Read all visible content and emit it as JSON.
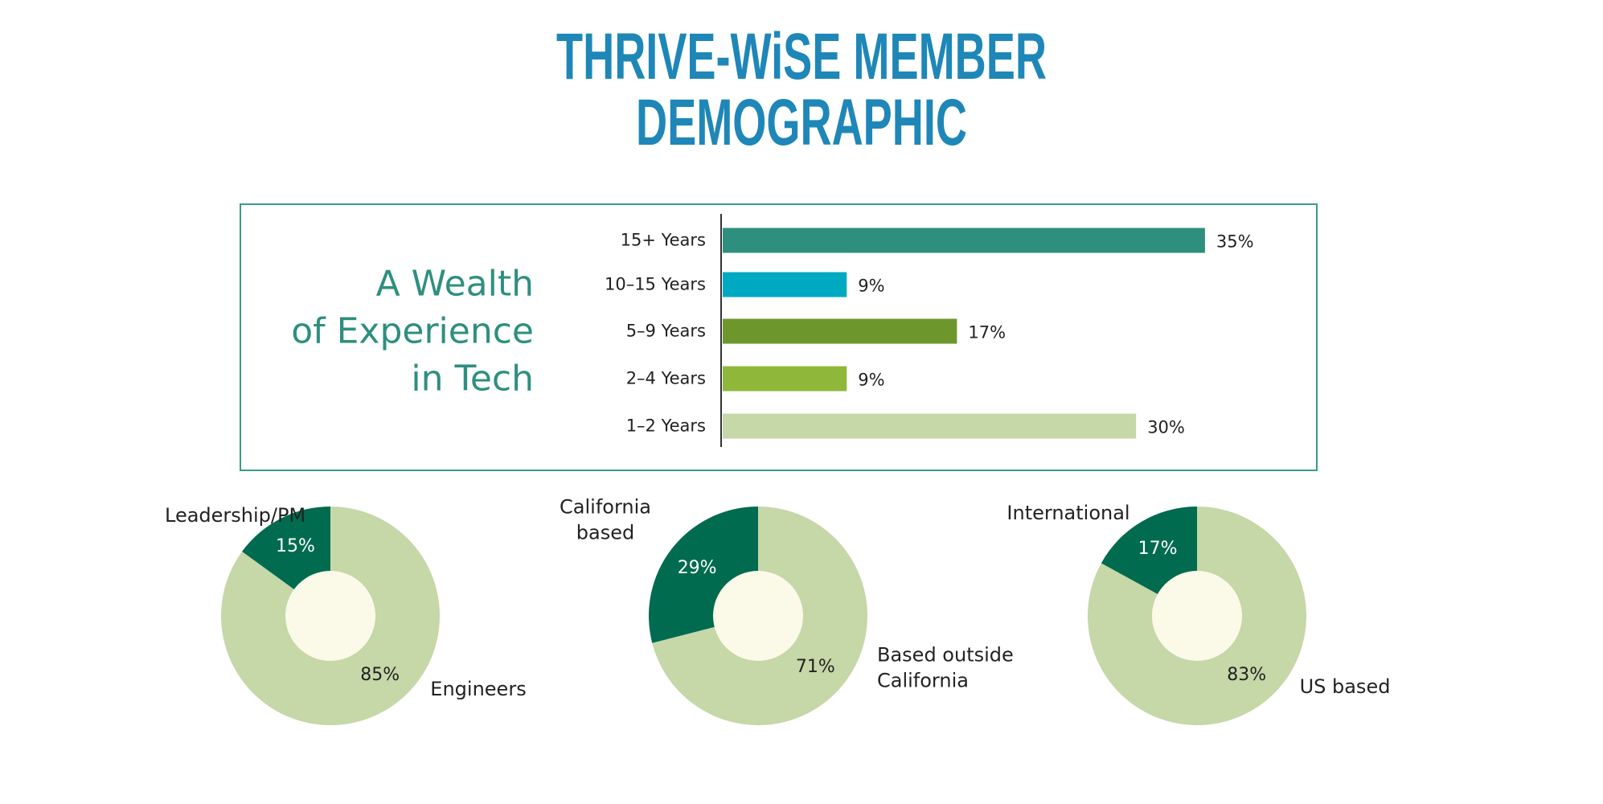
{
  "title": "THRIVE-WiSE MEMBER DEMOGRAPHIC",
  "chart_data": [
    {
      "type": "bar",
      "title": "A Wealth\nof Experience\nin Tech",
      "categories": [
        "15+ Years",
        "10–15 Years",
        "5–9 Years",
        "2–4 Years",
        "1–2 Years"
      ],
      "values": [
        35,
        9,
        17,
        9,
        30
      ],
      "value_labels": [
        "35%",
        "9%",
        "17%",
        "9%",
        "30%"
      ],
      "colors": [
        "#2e8f7f",
        "#00a9c2",
        "#6d972c",
        "#8fb83a",
        "#c6d7a8"
      ]
    },
    {
      "type": "pie",
      "categories": [
        "Leadership/PM",
        "Engineers"
      ],
      "values": [
        15,
        85
      ],
      "value_labels": [
        "15%",
        "85%"
      ],
      "colors": [
        "#006b4f",
        "#c6d7a8"
      ]
    },
    {
      "type": "pie",
      "categories": [
        "California\nbased",
        "Based outside\nCalifornia"
      ],
      "values": [
        29,
        71
      ],
      "value_labels": [
        "29%",
        "71%"
      ],
      "colors": [
        "#006b4f",
        "#c6d7a8"
      ]
    },
    {
      "type": "pie",
      "categories": [
        "International",
        "US based"
      ],
      "values": [
        17,
        83
      ],
      "value_labels": [
        "17%",
        "83%"
      ],
      "colors": [
        "#006b4f",
        "#c6d7a8"
      ]
    }
  ]
}
